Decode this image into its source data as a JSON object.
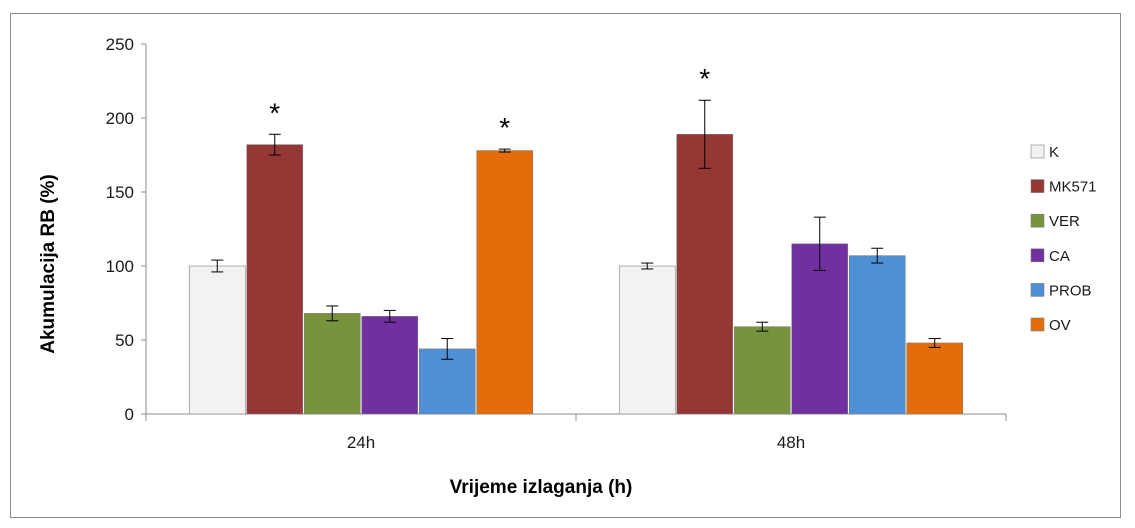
{
  "chart_data": {
    "type": "bar",
    "categories": [
      "24h",
      "48h"
    ],
    "series": [
      {
        "name": "K",
        "color": "#f2f2f2",
        "values": [
          100,
          100
        ],
        "errors": [
          4,
          2
        ],
        "significant": [
          false,
          false
        ]
      },
      {
        "name": "MK571",
        "color": "#953735",
        "values": [
          182,
          189
        ],
        "errors": [
          7,
          23
        ],
        "significant": [
          true,
          true
        ]
      },
      {
        "name": "VER",
        "color": "#77933c",
        "values": [
          68,
          59
        ],
        "errors": [
          5,
          3
        ],
        "significant": [
          false,
          false
        ]
      },
      {
        "name": "CA",
        "color": "#7030a0",
        "values": [
          66,
          115
        ],
        "errors": [
          4,
          18
        ],
        "significant": [
          false,
          false
        ]
      },
      {
        "name": "PROB",
        "color": "#4f8fd6",
        "values": [
          44,
          107
        ],
        "errors": [
          7,
          5
        ],
        "significant": [
          false,
          false
        ]
      },
      {
        "name": "OV",
        "color": "#e46c0a",
        "values": [
          178,
          48
        ],
        "errors": [
          1,
          3
        ],
        "significant": [
          true,
          false
        ]
      }
    ],
    "significance_marker": "*",
    "ylim": [
      0,
      250
    ],
    "yticks": [
      0,
      50,
      100,
      150,
      200,
      250
    ],
    "ylabel": "Akumulacija RB (%)",
    "xlabel": "Vrijeme izlaganja (h)",
    "grid": false,
    "legend_position": "right"
  }
}
